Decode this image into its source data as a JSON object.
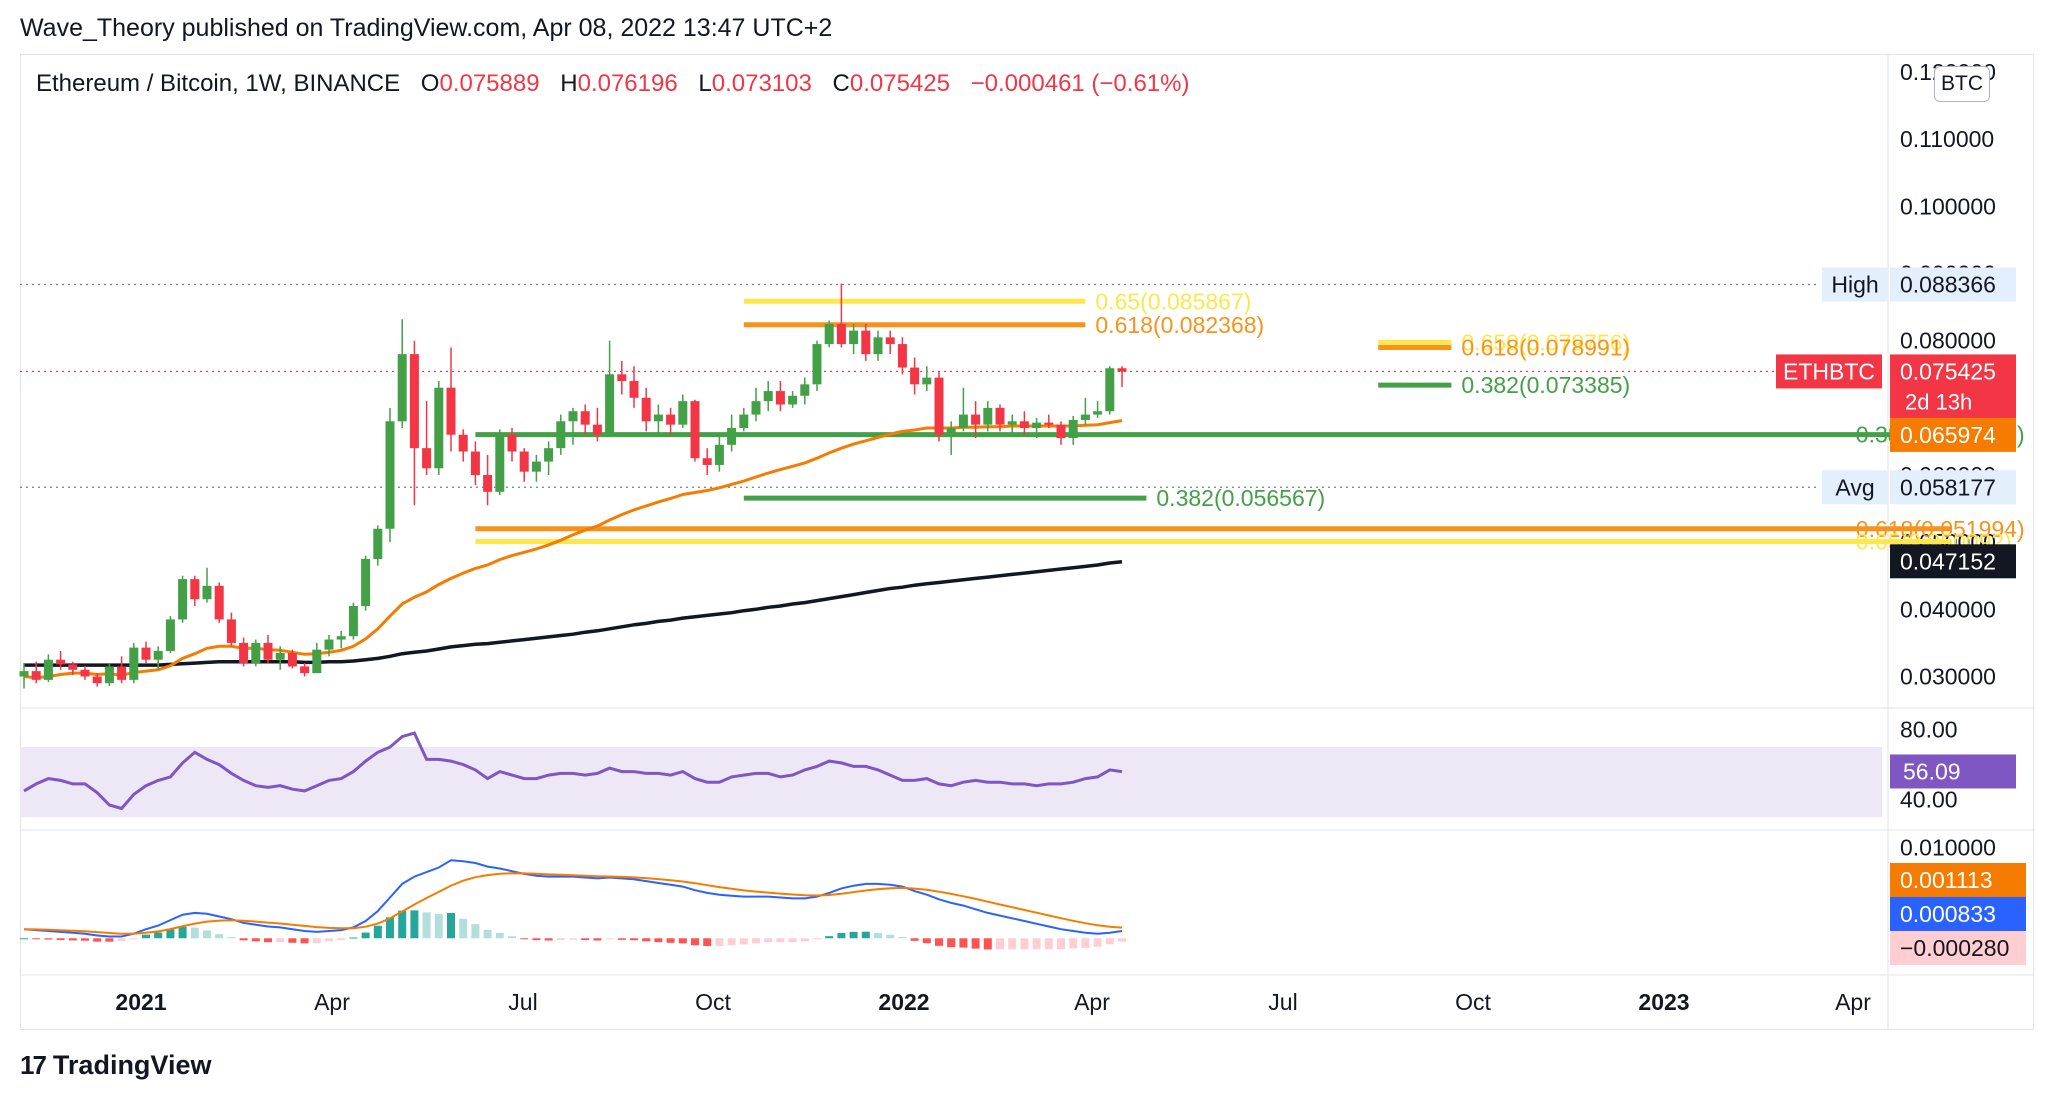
{
  "header": {
    "publisher": "Wave_Theory published on TradingView.com, Apr 08, 2022 13:47 UTC+2"
  },
  "legend": {
    "symbol": "Ethereum / Bitcoin, 1W, BINANCE",
    "open_label": "O",
    "open": "0.075889",
    "high_label": "H",
    "high": "0.076196",
    "low_label": "L",
    "low": "0.073103",
    "close_label": "C",
    "close": "0.075425",
    "change": "−0.000461 (−0.61%)"
  },
  "currency_button": "BTC",
  "footer": {
    "brand": "TradingView",
    "logo_icon": "tradingview-logo-icon"
  },
  "colors": {
    "up": "#43a047",
    "down": "#f23645",
    "ema_fast": "#f57c00",
    "ema_slow": "#131722",
    "fib_orange": "#f7931a",
    "fib_yellow": "#fde74c",
    "fib_green": "#43a047",
    "rsi_line": "#7e57c2",
    "rsi_band": "#ede7f6",
    "macd_line": "#2962ff",
    "signal_line": "#f57c00"
  },
  "chart_data": [
    {
      "type": "candlestick",
      "pane": "price",
      "time_axis": [
        "2021",
        "Apr",
        "Jul",
        "Oct",
        "2022",
        "Apr",
        "Jul",
        "Oct",
        "2023",
        "Apr"
      ],
      "y_ticks": [
        "0.120000",
        "0.110000",
        "0.100000",
        "0.090000",
        "0.080000",
        "0.070000",
        "0.060000",
        "0.050000",
        "0.040000",
        "0.030000"
      ],
      "ylim": [
        0.0265,
        0.1215
      ],
      "candles": [
        {
          "o": 0.03,
          "h": 0.032,
          "l": 0.0282,
          "c": 0.0308
        },
        {
          "o": 0.0308,
          "h": 0.0322,
          "l": 0.029,
          "c": 0.0295
        },
        {
          "o": 0.0295,
          "h": 0.0333,
          "l": 0.0292,
          "c": 0.0325
        },
        {
          "o": 0.0325,
          "h": 0.0338,
          "l": 0.031,
          "c": 0.0318
        },
        {
          "o": 0.0318,
          "h": 0.0322,
          "l": 0.0302,
          "c": 0.031
        },
        {
          "o": 0.031,
          "h": 0.0316,
          "l": 0.0295,
          "c": 0.03
        },
        {
          "o": 0.03,
          "h": 0.0305,
          "l": 0.0285,
          "c": 0.029
        },
        {
          "o": 0.029,
          "h": 0.032,
          "l": 0.0286,
          "c": 0.0315
        },
        {
          "o": 0.0315,
          "h": 0.033,
          "l": 0.029,
          "c": 0.0295
        },
        {
          "o": 0.0295,
          "h": 0.035,
          "l": 0.029,
          "c": 0.0343
        },
        {
          "o": 0.0343,
          "h": 0.0352,
          "l": 0.032,
          "c": 0.0325
        },
        {
          "o": 0.0325,
          "h": 0.0345,
          "l": 0.031,
          "c": 0.0338
        },
        {
          "o": 0.0338,
          "h": 0.039,
          "l": 0.0335,
          "c": 0.0385
        },
        {
          "o": 0.0385,
          "h": 0.045,
          "l": 0.038,
          "c": 0.0445
        },
        {
          "o": 0.0445,
          "h": 0.045,
          "l": 0.0405,
          "c": 0.0415
        },
        {
          "o": 0.0415,
          "h": 0.0462,
          "l": 0.041,
          "c": 0.0435
        },
        {
          "o": 0.0435,
          "h": 0.044,
          "l": 0.038,
          "c": 0.0385
        },
        {
          "o": 0.0385,
          "h": 0.0395,
          "l": 0.0345,
          "c": 0.035
        },
        {
          "o": 0.035,
          "h": 0.0358,
          "l": 0.0315,
          "c": 0.032
        },
        {
          "o": 0.032,
          "h": 0.0355,
          "l": 0.0315,
          "c": 0.035
        },
        {
          "o": 0.035,
          "h": 0.0362,
          "l": 0.032,
          "c": 0.0325
        },
        {
          "o": 0.0325,
          "h": 0.0345,
          "l": 0.031,
          "c": 0.0335
        },
        {
          "o": 0.0335,
          "h": 0.034,
          "l": 0.0312,
          "c": 0.0315
        },
        {
          "o": 0.0315,
          "h": 0.032,
          "l": 0.03,
          "c": 0.0305
        },
        {
          "o": 0.0305,
          "h": 0.035,
          "l": 0.0305,
          "c": 0.034
        },
        {
          "o": 0.034,
          "h": 0.0362,
          "l": 0.033,
          "c": 0.0355
        },
        {
          "o": 0.0355,
          "h": 0.0368,
          "l": 0.0342,
          "c": 0.036
        },
        {
          "o": 0.036,
          "h": 0.041,
          "l": 0.0355,
          "c": 0.0405
        },
        {
          "o": 0.0405,
          "h": 0.048,
          "l": 0.0398,
          "c": 0.0475
        },
        {
          "o": 0.0475,
          "h": 0.0525,
          "l": 0.0465,
          "c": 0.052
        },
        {
          "o": 0.052,
          "h": 0.07,
          "l": 0.05,
          "c": 0.068
        },
        {
          "o": 0.068,
          "h": 0.0832,
          "l": 0.067,
          "c": 0.078
        },
        {
          "o": 0.078,
          "h": 0.08,
          "l": 0.0555,
          "c": 0.064
        },
        {
          "o": 0.064,
          "h": 0.071,
          "l": 0.06,
          "c": 0.061
        },
        {
          "o": 0.061,
          "h": 0.074,
          "l": 0.06,
          "c": 0.073
        },
        {
          "o": 0.073,
          "h": 0.079,
          "l": 0.0635,
          "c": 0.066
        },
        {
          "o": 0.066,
          "h": 0.0668,
          "l": 0.062,
          "c": 0.0635
        },
        {
          "o": 0.0635,
          "h": 0.065,
          "l": 0.0585,
          "c": 0.06
        },
        {
          "o": 0.06,
          "h": 0.063,
          "l": 0.0555,
          "c": 0.0575
        },
        {
          "o": 0.0575,
          "h": 0.0668,
          "l": 0.057,
          "c": 0.066
        },
        {
          "o": 0.066,
          "h": 0.067,
          "l": 0.062,
          "c": 0.0635
        },
        {
          "o": 0.0635,
          "h": 0.064,
          "l": 0.059,
          "c": 0.0605
        },
        {
          "o": 0.0605,
          "h": 0.063,
          "l": 0.059,
          "c": 0.062
        },
        {
          "o": 0.062,
          "h": 0.065,
          "l": 0.06,
          "c": 0.064
        },
        {
          "o": 0.064,
          "h": 0.069,
          "l": 0.063,
          "c": 0.068
        },
        {
          "o": 0.068,
          "h": 0.07,
          "l": 0.0645,
          "c": 0.0695
        },
        {
          "o": 0.0695,
          "h": 0.0705,
          "l": 0.066,
          "c": 0.0675
        },
        {
          "o": 0.0675,
          "h": 0.07,
          "l": 0.065,
          "c": 0.066
        },
        {
          "o": 0.066,
          "h": 0.08,
          "l": 0.066,
          "c": 0.075
        },
        {
          "o": 0.075,
          "h": 0.077,
          "l": 0.072,
          "c": 0.074
        },
        {
          "o": 0.074,
          "h": 0.0762,
          "l": 0.07,
          "c": 0.0715
        },
        {
          "o": 0.0715,
          "h": 0.073,
          "l": 0.0665,
          "c": 0.068
        },
        {
          "o": 0.068,
          "h": 0.0705,
          "l": 0.066,
          "c": 0.069
        },
        {
          "o": 0.069,
          "h": 0.07,
          "l": 0.066,
          "c": 0.0675
        },
        {
          "o": 0.0675,
          "h": 0.072,
          "l": 0.067,
          "c": 0.071
        },
        {
          "o": 0.071,
          "h": 0.0712,
          "l": 0.062,
          "c": 0.0625
        },
        {
          "o": 0.0625,
          "h": 0.064,
          "l": 0.06,
          "c": 0.0615
        },
        {
          "o": 0.0615,
          "h": 0.066,
          "l": 0.0605,
          "c": 0.0645
        },
        {
          "o": 0.0645,
          "h": 0.069,
          "l": 0.0635,
          "c": 0.067
        },
        {
          "o": 0.067,
          "h": 0.07,
          "l": 0.0665,
          "c": 0.069
        },
        {
          "o": 0.069,
          "h": 0.073,
          "l": 0.068,
          "c": 0.071
        },
        {
          "o": 0.071,
          "h": 0.074,
          "l": 0.0695,
          "c": 0.0725
        },
        {
          "o": 0.0725,
          "h": 0.074,
          "l": 0.0695,
          "c": 0.0705
        },
        {
          "o": 0.0705,
          "h": 0.0725,
          "l": 0.07,
          "c": 0.0718
        },
        {
          "o": 0.0718,
          "h": 0.0745,
          "l": 0.0705,
          "c": 0.0735
        },
        {
          "o": 0.0735,
          "h": 0.08,
          "l": 0.0725,
          "c": 0.0795
        },
        {
          "o": 0.0795,
          "h": 0.083,
          "l": 0.079,
          "c": 0.0825
        },
        {
          "o": 0.0825,
          "h": 0.0885,
          "l": 0.079,
          "c": 0.0795
        },
        {
          "o": 0.0795,
          "h": 0.0825,
          "l": 0.078,
          "c": 0.0815
        },
        {
          "o": 0.0815,
          "h": 0.0825,
          "l": 0.077,
          "c": 0.078
        },
        {
          "o": 0.078,
          "h": 0.0815,
          "l": 0.077,
          "c": 0.0805
        },
        {
          "o": 0.0805,
          "h": 0.0815,
          "l": 0.078,
          "c": 0.0795
        },
        {
          "o": 0.0795,
          "h": 0.0805,
          "l": 0.075,
          "c": 0.076
        },
        {
          "o": 0.076,
          "h": 0.0775,
          "l": 0.072,
          "c": 0.0735
        },
        {
          "o": 0.0735,
          "h": 0.0762,
          "l": 0.0725,
          "c": 0.0745
        },
        {
          "o": 0.0745,
          "h": 0.0755,
          "l": 0.065,
          "c": 0.066
        },
        {
          "o": 0.066,
          "h": 0.068,
          "l": 0.063,
          "c": 0.067
        },
        {
          "o": 0.067,
          "h": 0.073,
          "l": 0.0665,
          "c": 0.069
        },
        {
          "o": 0.069,
          "h": 0.071,
          "l": 0.0655,
          "c": 0.0675
        },
        {
          "o": 0.0675,
          "h": 0.071,
          "l": 0.0665,
          "c": 0.07
        },
        {
          "o": 0.07,
          "h": 0.0705,
          "l": 0.0665,
          "c": 0.0675
        },
        {
          "o": 0.0675,
          "h": 0.069,
          "l": 0.066,
          "c": 0.068
        },
        {
          "o": 0.068,
          "h": 0.0695,
          "l": 0.066,
          "c": 0.067
        },
        {
          "o": 0.067,
          "h": 0.0685,
          "l": 0.0655,
          "c": 0.0678
        },
        {
          "o": 0.0678,
          "h": 0.069,
          "l": 0.067,
          "c": 0.0675
        },
        {
          "o": 0.0675,
          "h": 0.068,
          "l": 0.0645,
          "c": 0.0655
        },
        {
          "o": 0.0655,
          "h": 0.0688,
          "l": 0.0645,
          "c": 0.0682
        },
        {
          "o": 0.0682,
          "h": 0.0715,
          "l": 0.0675,
          "c": 0.069
        },
        {
          "o": 0.069,
          "h": 0.071,
          "l": 0.0685,
          "c": 0.0695
        },
        {
          "o": 0.0695,
          "h": 0.0762,
          "l": 0.069,
          "c": 0.0759
        },
        {
          "o": 0.0759,
          "h": 0.0762,
          "l": 0.0731,
          "c": 0.0754
        }
      ],
      "ema_fast": [
        0.03,
        0.0298,
        0.03,
        0.0303,
        0.0305,
        0.0305,
        0.0303,
        0.0304,
        0.0302,
        0.0306,
        0.0308,
        0.031,
        0.0316,
        0.0327,
        0.0334,
        0.0342,
        0.0345,
        0.0345,
        0.0342,
        0.0342,
        0.034,
        0.0339,
        0.0336,
        0.0333,
        0.0334,
        0.0336,
        0.0339,
        0.0345,
        0.0356,
        0.0371,
        0.039,
        0.0408,
        0.0418,
        0.0426,
        0.0437,
        0.0446,
        0.0454,
        0.0461,
        0.0466,
        0.0474,
        0.048,
        0.0485,
        0.049,
        0.0496,
        0.0503,
        0.0511,
        0.0518,
        0.0524,
        0.0533,
        0.0541,
        0.0548,
        0.0554,
        0.056,
        0.0565,
        0.0571,
        0.0574,
        0.0577,
        0.0581,
        0.0586,
        0.0591,
        0.0597,
        0.0603,
        0.0608,
        0.0613,
        0.0618,
        0.0625,
        0.0633,
        0.064,
        0.0646,
        0.0651,
        0.0656,
        0.0661,
        0.0665,
        0.0667,
        0.067,
        0.067,
        0.067,
        0.0671,
        0.0671,
        0.0672,
        0.0672,
        0.0673,
        0.0673,
        0.0673,
        0.0673,
        0.0673,
        0.0673,
        0.0674,
        0.0675,
        0.0678,
        0.0681
      ],
      "ema_slow": [
        0.0317,
        0.0317,
        0.0317,
        0.0317,
        0.0317,
        0.0317,
        0.0317,
        0.0317,
        0.0317,
        0.0317,
        0.0317,
        0.0317,
        0.0318,
        0.0319,
        0.032,
        0.0321,
        0.0322,
        0.0322,
        0.0322,
        0.0322,
        0.0322,
        0.0322,
        0.0322,
        0.0321,
        0.0321,
        0.0322,
        0.0322,
        0.0323,
        0.0325,
        0.0327,
        0.033,
        0.0334,
        0.0336,
        0.0338,
        0.0341,
        0.0344,
        0.0346,
        0.0348,
        0.0349,
        0.0351,
        0.0353,
        0.0355,
        0.0357,
        0.0359,
        0.0361,
        0.0363,
        0.0366,
        0.0368,
        0.0371,
        0.0374,
        0.0377,
        0.0379,
        0.0382,
        0.0384,
        0.0387,
        0.0389,
        0.0391,
        0.0393,
        0.0395,
        0.0398,
        0.04,
        0.0403,
        0.0405,
        0.0408,
        0.041,
        0.0413,
        0.0416,
        0.0419,
        0.0422,
        0.0425,
        0.0428,
        0.0431,
        0.0433,
        0.0436,
        0.0438,
        0.044,
        0.0442,
        0.0444,
        0.0446,
        0.0448,
        0.045,
        0.0452,
        0.0454,
        0.0456,
        0.0458,
        0.046,
        0.0462,
        0.0464,
        0.0466,
        0.0469,
        0.0471
      ],
      "fib_levels": [
        {
          "label": "0.65(0.085867)",
          "value": 0.085867,
          "color": "yellow",
          "x_from": 59,
          "x_to": 87
        },
        {
          "label": "0.618(0.082368)",
          "value": 0.082368,
          "color": "orange",
          "x_from": 59,
          "x_to": 87
        },
        {
          "label": "0.650(0.079756)",
          "value": 0.079756,
          "color": "yellow",
          "x_from": 111,
          "x_to": 117
        },
        {
          "label": "0.618(0.078991)",
          "value": 0.078991,
          "color": "orange",
          "x_from": 111,
          "x_to": 117
        },
        {
          "label": "0.382(0.073385)",
          "value": 0.073385,
          "color": "green",
          "x_from": 111,
          "x_to": 117
        },
        {
          "label": "0.382(0.066019)",
          "value": 0.066019,
          "color": "green",
          "x_from": 37,
          "x_to": 158
        },
        {
          "label": "0.382(0.056567)",
          "value": 0.056567,
          "color": "green",
          "x_from": 59,
          "x_to": 92
        },
        {
          "label": "0.618(0.051994)",
          "value": 0.051994,
          "color": "orange",
          "x_from": 37,
          "x_to": 158
        },
        {
          "label": "0.65(0.050092)",
          "value": 0.050092,
          "color": "yellow",
          "x_from": 37,
          "x_to": 158
        }
      ],
      "reference_lines": [
        {
          "label": "High",
          "value": 0.088366,
          "price": "0.088366"
        },
        {
          "label": "Avg",
          "value": 0.058177,
          "price": "0.058177"
        }
      ],
      "price_tags": [
        {
          "label": "ETHBTC",
          "price": "0.075425",
          "sub": "2d 13h",
          "value": 0.075425,
          "color": "#f23645"
        },
        {
          "label": "",
          "price": "0.065974",
          "value": 0.065974,
          "color": "#f57c00"
        },
        {
          "label": "",
          "price": "0.047152",
          "value": 0.047152,
          "color": "#131722"
        }
      ]
    },
    {
      "type": "line",
      "pane": "rsi",
      "y_ticks": [
        "80.00",
        "40.00"
      ],
      "ylim": [
        25,
        90
      ],
      "band": [
        30,
        70
      ],
      "current": "56.09",
      "values": [
        45,
        49,
        52,
        51,
        49,
        49,
        44,
        37,
        35,
        43,
        48,
        51,
        53,
        61,
        67,
        63,
        60,
        55,
        51,
        48,
        47,
        48,
        46,
        45,
        48,
        51,
        52,
        56,
        62,
        67,
        70,
        76,
        78,
        63,
        63,
        62,
        60,
        57,
        52,
        56,
        54,
        52,
        52,
        54,
        55,
        55,
        54,
        55,
        58,
        56,
        56,
        55,
        55,
        54,
        56,
        52,
        50,
        50,
        53,
        54,
        55,
        55,
        53,
        54,
        57,
        59,
        62,
        61,
        59,
        59,
        57,
        54,
        51,
        51,
        52,
        49,
        48,
        50,
        51,
        50,
        50,
        49,
        49,
        48,
        49,
        49,
        50,
        52,
        53,
        57,
        56
      ]
    },
    {
      "type": "line",
      "pane": "macd",
      "y_ticks": [
        "0.010000"
      ],
      "ylim": [
        -0.0035,
        0.0115
      ],
      "macd_value": "0.000833",
      "signal_value": "0.001113",
      "histogram_value": "−0.000280",
      "macd": [
        0.001,
        0.0009,
        0.0008,
        0.0007,
        0.0006,
        0.0005,
        0.0003,
        0.0002,
        0.0002,
        0.0005,
        0.001,
        0.0014,
        0.002,
        0.0026,
        0.0028,
        0.0027,
        0.0024,
        0.0021,
        0.0017,
        0.0015,
        0.0013,
        0.0012,
        0.001,
        0.0008,
        0.0007,
        0.0008,
        0.0009,
        0.0012,
        0.0019,
        0.003,
        0.0045,
        0.006,
        0.0068,
        0.0073,
        0.0078,
        0.0086,
        0.0085,
        0.0083,
        0.0079,
        0.0077,
        0.0074,
        0.0071,
        0.0069,
        0.0068,
        0.0068,
        0.0068,
        0.0067,
        0.0066,
        0.0067,
        0.0066,
        0.0065,
        0.0063,
        0.0061,
        0.0059,
        0.0057,
        0.0053,
        0.005,
        0.0048,
        0.0047,
        0.0046,
        0.0046,
        0.0046,
        0.0045,
        0.0044,
        0.0044,
        0.0046,
        0.005,
        0.0055,
        0.0058,
        0.006,
        0.006,
        0.0059,
        0.0057,
        0.0052,
        0.0048,
        0.0043,
        0.0039,
        0.0036,
        0.0032,
        0.0028,
        0.0025,
        0.0022,
        0.0019,
        0.0016,
        0.0013,
        0.001,
        0.0008,
        0.0006,
        0.0005,
        0.0006,
        0.0008
      ]
    }
  ]
}
